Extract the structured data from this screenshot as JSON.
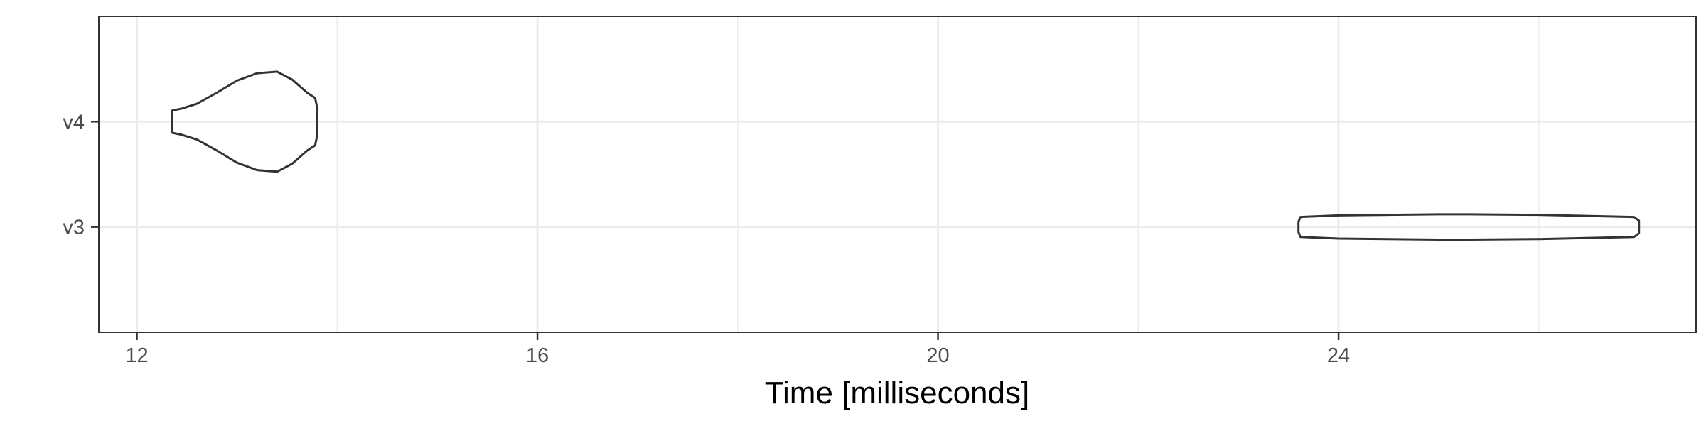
{
  "chart_data": {
    "type": "violin",
    "title": "",
    "xlabel": "Time [milliseconds]",
    "ylabel": "",
    "xlim": [
      11.62,
      27.57
    ],
    "x_ticks": [
      12,
      16,
      20,
      24
    ],
    "x_minor_ticks": [
      14,
      18,
      22,
      26
    ],
    "categories": [
      "v3",
      "v4"
    ],
    "grid": true,
    "legend": "none",
    "outline_color": "#333333",
    "grid_color": "#ebebeb",
    "series": [
      {
        "category": "v4",
        "profile": [
          {
            "x": 12.35,
            "w": 0.21
          },
          {
            "x": 12.45,
            "w": 0.25
          },
          {
            "x": 12.6,
            "w": 0.34
          },
          {
            "x": 12.8,
            "w": 0.55
          },
          {
            "x": 13.0,
            "w": 0.78
          },
          {
            "x": 13.2,
            "w": 0.92
          },
          {
            "x": 13.4,
            "w": 0.95
          },
          {
            "x": 13.55,
            "w": 0.8
          },
          {
            "x": 13.7,
            "w": 0.55
          },
          {
            "x": 13.78,
            "w": 0.45
          },
          {
            "x": 13.8,
            "w": 0.27
          }
        ]
      },
      {
        "category": "v3",
        "profile": [
          {
            "x": 23.6,
            "w": 0.1
          },
          {
            "x": 23.62,
            "w": 0.19
          },
          {
            "x": 24.0,
            "w": 0.22
          },
          {
            "x": 25.0,
            "w": 0.24
          },
          {
            "x": 25.3,
            "w": 0.24
          },
          {
            "x": 26.0,
            "w": 0.23
          },
          {
            "x": 26.95,
            "w": 0.19
          },
          {
            "x": 27.0,
            "w": 0.12
          }
        ]
      }
    ]
  }
}
